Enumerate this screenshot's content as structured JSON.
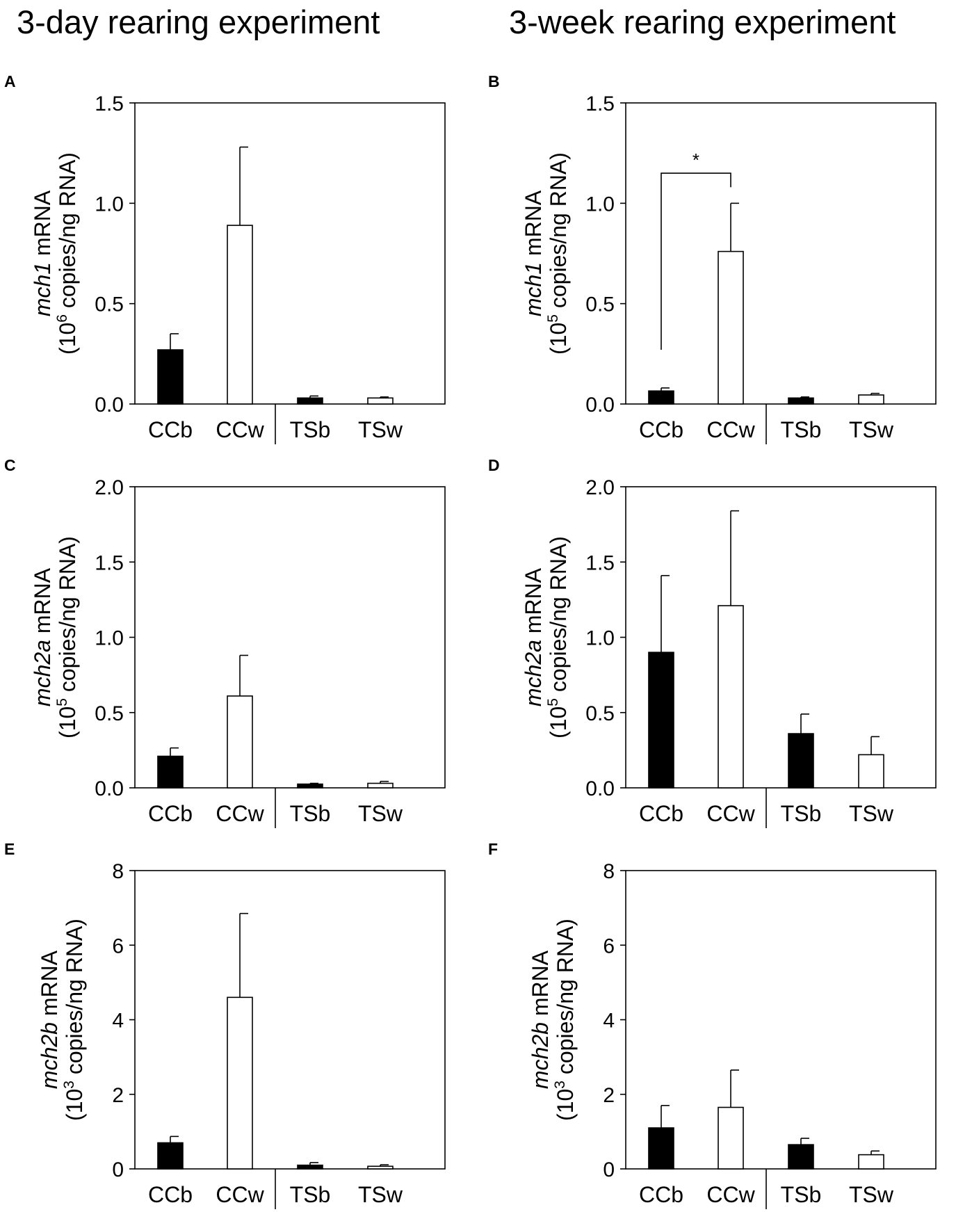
{
  "figure": {
    "left_title": "3-day rearing experiment",
    "right_title": "3-week rearing experiment"
  },
  "colors": {
    "black_bar": "#000000",
    "white_bar": "#ffffff",
    "stroke": "#000000"
  },
  "chart_data": [
    {
      "id": "A",
      "panel_label": "A",
      "type": "bar",
      "categories": [
        "CCb",
        "CCw",
        "TSb",
        "TSw"
      ],
      "bar_fill": [
        "black",
        "white",
        "black",
        "white"
      ],
      "values": [
        0.27,
        0.89,
        0.03,
        0.03
      ],
      "errors": [
        0.08,
        0.39,
        0.01,
        0.005
      ],
      "ylabel_gene": "mch1",
      "ylabel_suffix": " mRNA",
      "ylabel_unit_pre": "(10",
      "ylabel_unit_exp": "6",
      "ylabel_unit_post": " copies/ng RNA)",
      "ylim": [
        0,
        1.5
      ],
      "yticks": [
        "0.0",
        "0.5",
        "1.0",
        "1.5"
      ],
      "ytick_values": [
        0,
        0.5,
        1.0,
        1.5
      ],
      "significance": null
    },
    {
      "id": "B",
      "panel_label": "B",
      "type": "bar",
      "categories": [
        "CCb",
        "CCw",
        "TSb",
        "TSw"
      ],
      "bar_fill": [
        "black",
        "white",
        "black",
        "white"
      ],
      "values": [
        0.065,
        0.76,
        0.03,
        0.045
      ],
      "errors": [
        0.015,
        0.24,
        0.005,
        0.008
      ],
      "ylabel_gene": "mch1",
      "ylabel_suffix": " mRNA",
      "ylabel_unit_pre": "(10",
      "ylabel_unit_exp": "5",
      "ylabel_unit_post": " copies/ng RNA)",
      "ylim": [
        0,
        1.5
      ],
      "yticks": [
        "0.0",
        "0.5",
        "1.0",
        "1.5"
      ],
      "ytick_values": [
        0,
        0.5,
        1.0,
        1.5
      ],
      "significance": {
        "from": 0,
        "to": 1,
        "label": "*",
        "y_top": 1.15,
        "y_left": 0.27,
        "y_right": 1.08
      }
    },
    {
      "id": "C",
      "panel_label": "C",
      "type": "bar",
      "categories": [
        "CCb",
        "CCw",
        "TSb",
        "TSw"
      ],
      "bar_fill": [
        "black",
        "white",
        "black",
        "white"
      ],
      "values": [
        0.21,
        0.61,
        0.025,
        0.03
      ],
      "errors": [
        0.055,
        0.27,
        0.005,
        0.013
      ],
      "ylabel_gene": "mch2a",
      "ylabel_suffix": " mRNA",
      "ylabel_unit_pre": "(10",
      "ylabel_unit_exp": "5",
      "ylabel_unit_post": " copies/ng RNA)",
      "ylim": [
        0,
        2.0
      ],
      "yticks": [
        "0.0",
        "0.5",
        "1.0",
        "1.5",
        "2.0"
      ],
      "ytick_values": [
        0,
        0.5,
        1.0,
        1.5,
        2.0
      ],
      "significance": null
    },
    {
      "id": "D",
      "panel_label": "D",
      "type": "bar",
      "categories": [
        "CCb",
        "CCw",
        "TSb",
        "TSw"
      ],
      "bar_fill": [
        "black",
        "white",
        "black",
        "white"
      ],
      "values": [
        0.9,
        1.21,
        0.36,
        0.22
      ],
      "errors": [
        0.51,
        0.63,
        0.13,
        0.12
      ],
      "ylabel_gene": "mch2a",
      "ylabel_suffix": " mRNA",
      "ylabel_unit_pre": "(10",
      "ylabel_unit_exp": "5",
      "ylabel_unit_post": " copies/ng RNA)",
      "ylim": [
        0,
        2.0
      ],
      "yticks": [
        "0.0",
        "0.5",
        "1.0",
        "1.5",
        "2.0"
      ],
      "ytick_values": [
        0,
        0.5,
        1.0,
        1.5,
        2.0
      ],
      "significance": null
    },
    {
      "id": "E",
      "panel_label": "E",
      "type": "bar",
      "categories": [
        "CCb",
        "CCw",
        "TSb",
        "TSw"
      ],
      "bar_fill": [
        "black",
        "white",
        "black",
        "white"
      ],
      "values": [
        0.7,
        4.6,
        0.1,
        0.07
      ],
      "errors": [
        0.17,
        2.25,
        0.07,
        0.04
      ],
      "ylabel_gene": "mch2b",
      "ylabel_suffix": " mRNA",
      "ylabel_unit_pre": "(10",
      "ylabel_unit_exp": "3",
      "ylabel_unit_post": " copies/ng RNA)",
      "ylim": [
        0,
        8
      ],
      "yticks": [
        "0",
        "2",
        "4",
        "6",
        "8"
      ],
      "ytick_values": [
        0,
        2,
        4,
        6,
        8
      ],
      "significance": null
    },
    {
      "id": "F",
      "panel_label": "F",
      "type": "bar",
      "categories": [
        "CCb",
        "CCw",
        "TSb",
        "TSw"
      ],
      "bar_fill": [
        "black",
        "white",
        "black",
        "white"
      ],
      "values": [
        1.1,
        1.65,
        0.65,
        0.38
      ],
      "errors": [
        0.6,
        1.0,
        0.17,
        0.1
      ],
      "ylabel_gene": "mch2b",
      "ylabel_suffix": " mRNA",
      "ylabel_unit_pre": "(10",
      "ylabel_unit_exp": "3",
      "ylabel_unit_post": " copies/ng RNA)",
      "ylim": [
        0,
        8
      ],
      "yticks": [
        "0",
        "2",
        "4",
        "6",
        "8"
      ],
      "ytick_values": [
        0,
        2,
        4,
        6,
        8
      ],
      "significance": null
    }
  ]
}
